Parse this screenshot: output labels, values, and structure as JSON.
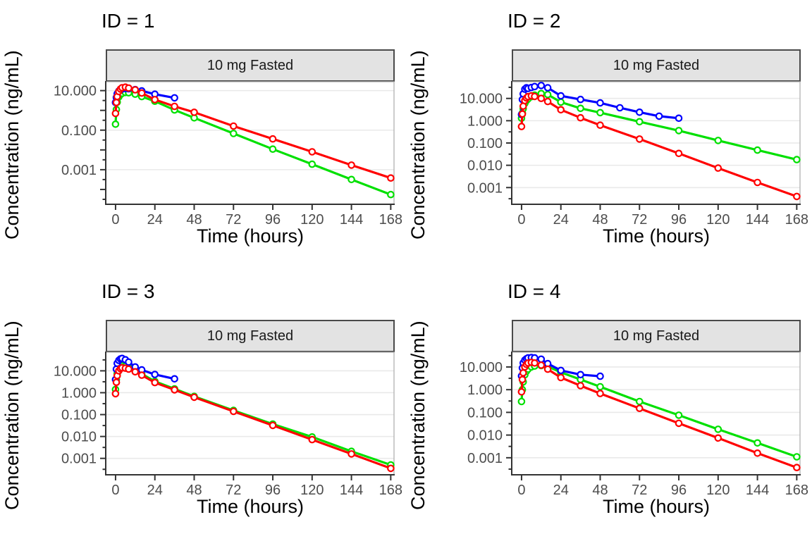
{
  "figure": {
    "background": "#FFFFFF",
    "columns": 2,
    "rows": 2
  },
  "styles": {
    "grid_color": "#E9E9E9",
    "panel_fill": "#FFFFFF",
    "panel_border_color": "#ABABAB",
    "axis_line_color": "#333333",
    "tick_color": "#333333",
    "tick_label_color": "#4D4D4D",
    "title_color": "#000000",
    "strip_fill": "#E3E3E3",
    "strip_border": "#4A4A4A",
    "strip_text_color": "#1A1A1A",
    "series_colors": {
      "red": "#FF0000",
      "green": "#00E000",
      "blue": "#0000FF"
    }
  },
  "chart_data": [
    {
      "type": "line",
      "title": "ID = 1",
      "strip_label": "10 mg Fasted",
      "xlabel": "Time (hours)",
      "ylabel": "Concentration (ng/mL)",
      "x_ticks": [
        0,
        24,
        48,
        72,
        96,
        120,
        144,
        168
      ],
      "xlim": [
        -6,
        170
      ],
      "ylog_lim": [
        -4.75,
        1.45
      ],
      "grid": "horizontal-major-only",
      "legend": "none",
      "y_ticks": [
        {
          "value": 10,
          "label": "10.000"
        },
        {
          "value": 0.1,
          "label": "0.100"
        },
        {
          "value": 0.001,
          "label": "0.001"
        }
      ],
      "series": [
        {
          "name": "green",
          "color": "#00E000",
          "x": [
            0,
            0.5,
            1,
            2,
            3,
            4,
            6,
            8,
            12,
            16,
            24,
            36,
            48,
            72,
            96,
            120,
            144,
            168
          ],
          "y": [
            0.2,
            1.1,
            2.6,
            4.8,
            6.3,
            7.3,
            8,
            7.8,
            6.6,
            5,
            2.9,
            1.05,
            0.42,
            0.068,
            0.011,
            0.0019,
            0.00032,
            5.5e-05
          ]
        },
        {
          "name": "blue",
          "color": "#0000FF",
          "x": [
            0,
            0.5,
            1,
            2,
            3,
            4,
            6,
            8,
            12,
            16,
            24,
            36
          ],
          "y": [
            2.5,
            4.5,
            7,
            9.5,
            11,
            12,
            12.8,
            12.4,
            11.2,
            9.6,
            6.6,
            4.3
          ]
        },
        {
          "name": "red",
          "color": "#FF0000",
          "x": [
            0,
            0.5,
            1,
            2,
            3,
            4,
            6,
            8,
            12,
            16,
            24,
            36,
            48,
            72,
            96,
            120,
            144,
            168
          ],
          "y": [
            0.7,
            2.5,
            5,
            9,
            12,
            14,
            15,
            13.5,
            11,
            7.5,
            3.5,
            1.6,
            0.8,
            0.16,
            0.036,
            0.008,
            0.0017,
            0.00038
          ]
        }
      ]
    },
    {
      "type": "line",
      "title": "ID = 2",
      "strip_label": "10 mg Fasted",
      "xlabel": "Time (hours)",
      "ylabel": "Concentration (ng/mL)",
      "x_ticks": [
        0,
        24,
        48,
        72,
        96,
        120,
        144,
        168
      ],
      "xlim": [
        -6,
        170
      ],
      "ylog_lim": [
        -3.75,
        1.75
      ],
      "grid": "horizontal-major-only",
      "legend": "none",
      "y_ticks": [
        {
          "value": 10,
          "label": "10.000"
        },
        {
          "value": 1,
          "label": "1.000"
        },
        {
          "value": 0.1,
          "label": "0.100"
        },
        {
          "value": 0.01,
          "label": "0.010"
        },
        {
          "value": 0.001,
          "label": "0.001"
        }
      ],
      "series": [
        {
          "name": "green",
          "color": "#00E000",
          "x": [
            0,
            0.5,
            1,
            2,
            3,
            4,
            6,
            8,
            12,
            16,
            24,
            36,
            48,
            72,
            96,
            120,
            144,
            168
          ],
          "y": [
            1.3,
            2.2,
            3.5,
            6,
            8,
            9.5,
            12,
            14,
            16.5,
            15,
            6.8,
            3.6,
            2.3,
            0.9,
            0.36,
            0.13,
            0.048,
            0.018
          ]
        },
        {
          "name": "blue",
          "color": "#0000FF",
          "x": [
            0,
            0.5,
            1,
            2,
            3,
            4,
            6,
            8,
            12,
            16,
            24,
            36,
            48,
            60,
            72,
            84,
            96
          ],
          "y": [
            1.9,
            9,
            16,
            26,
            30,
            28,
            31,
            34,
            38,
            30,
            13,
            9,
            6.3,
            3.8,
            2.4,
            1.6,
            1.3
          ]
        },
        {
          "name": "red",
          "color": "#FF0000",
          "x": [
            0,
            0.5,
            1,
            2,
            3,
            4,
            6,
            8,
            12,
            16,
            24,
            36,
            48,
            72,
            96,
            120,
            144,
            168
          ],
          "y": [
            0.55,
            2,
            4.5,
            8,
            10.5,
            12,
            13,
            12.3,
            10,
            7.3,
            3.1,
            1.35,
            0.63,
            0.15,
            0.034,
            0.0075,
            0.0017,
            0.0004
          ]
        }
      ]
    },
    {
      "type": "line",
      "title": "ID = 3",
      "strip_label": "10 mg Fasted",
      "xlabel": "Time (hours)",
      "ylabel": "Concentration (ng/mL)",
      "x_ticks": [
        0,
        24,
        48,
        72,
        96,
        120,
        144,
        168
      ],
      "xlim": [
        -6,
        170
      ],
      "ylog_lim": [
        -3.75,
        1.85
      ],
      "grid": "horizontal-major-only",
      "legend": "none",
      "y_ticks": [
        {
          "value": 10,
          "label": "10.000"
        },
        {
          "value": 1,
          "label": "1.000"
        },
        {
          "value": 0.1,
          "label": "0.100"
        },
        {
          "value": 0.01,
          "label": "0.010"
        },
        {
          "value": 0.001,
          "label": "0.001"
        }
      ],
      "series": [
        {
          "name": "green",
          "color": "#00E000",
          "x": [
            0,
            0.5,
            1,
            2,
            3,
            4,
            6,
            8,
            12,
            16,
            24,
            36,
            48,
            72,
            96,
            120,
            144,
            168
          ],
          "y": [
            1.4,
            4,
            7.5,
            12,
            15,
            17,
            16,
            14,
            10.5,
            7.2,
            3.3,
            1.5,
            0.68,
            0.155,
            0.037,
            0.0095,
            0.0021,
            0.0005
          ]
        },
        {
          "name": "blue",
          "color": "#0000FF",
          "x": [
            0,
            0.5,
            1,
            2,
            3,
            4,
            6,
            8,
            12,
            16,
            24,
            36
          ],
          "y": [
            4,
            12,
            22,
            30,
            35,
            37,
            32,
            25,
            15,
            11,
            6.8,
            4.3
          ]
        },
        {
          "name": "red",
          "color": "#FF0000",
          "x": [
            0,
            0.5,
            1,
            2,
            3,
            4,
            6,
            8,
            12,
            16,
            24,
            36,
            48,
            72,
            96,
            120,
            144,
            168
          ],
          "y": [
            0.9,
            3,
            6,
            10,
            12.5,
            13.8,
            13.2,
            12,
            9,
            6.3,
            2.9,
            1.35,
            0.62,
            0.14,
            0.032,
            0.0072,
            0.0016,
            0.00035
          ]
        }
      ]
    },
    {
      "type": "line",
      "title": "ID = 4",
      "strip_label": "10 mg Fasted",
      "xlabel": "Time (hours)",
      "ylabel": "Concentration (ng/mL)",
      "x_ticks": [
        0,
        24,
        48,
        72,
        96,
        120,
        144,
        168
      ],
      "xlim": [
        -6,
        170
      ],
      "ylog_lim": [
        -3.75,
        1.65
      ],
      "grid": "horizontal-major-only",
      "legend": "none",
      "y_ticks": [
        {
          "value": 10,
          "label": "10.000"
        },
        {
          "value": 1,
          "label": "1.000"
        },
        {
          "value": 0.1,
          "label": "0.100"
        },
        {
          "value": 0.01,
          "label": "0.010"
        },
        {
          "value": 0.001,
          "label": "0.001"
        }
      ],
      "series": [
        {
          "name": "green",
          "color": "#00E000",
          "x": [
            0,
            0.5,
            1,
            2,
            3,
            4,
            6,
            8,
            12,
            16,
            24,
            36,
            48,
            72,
            96,
            120,
            144,
            168
          ],
          "y": [
            0.3,
            1,
            2.2,
            4.5,
            6.5,
            8,
            10,
            11,
            11.5,
            10.5,
            5.8,
            2.8,
            1.35,
            0.3,
            0.075,
            0.018,
            0.0045,
            0.0011
          ]
        },
        {
          "name": "blue",
          "color": "#0000FF",
          "x": [
            0,
            0.5,
            1,
            2,
            3,
            4,
            6,
            8,
            12,
            16,
            24,
            36,
            48
          ],
          "y": [
            4,
            9,
            15,
            20,
            23,
            25,
            26,
            25,
            22,
            14,
            7,
            4.6,
            3.9
          ]
        },
        {
          "name": "red",
          "color": "#FF0000",
          "x": [
            0,
            0.5,
            1,
            2,
            3,
            4,
            6,
            8,
            12,
            16,
            24,
            36,
            48,
            72,
            96,
            120,
            144,
            168
          ],
          "y": [
            0.8,
            2.8,
            5.5,
            10,
            13,
            15,
            16,
            15,
            12,
            8,
            3.4,
            1.5,
            0.68,
            0.15,
            0.033,
            0.0074,
            0.0016,
            0.00037
          ]
        }
      ]
    }
  ]
}
